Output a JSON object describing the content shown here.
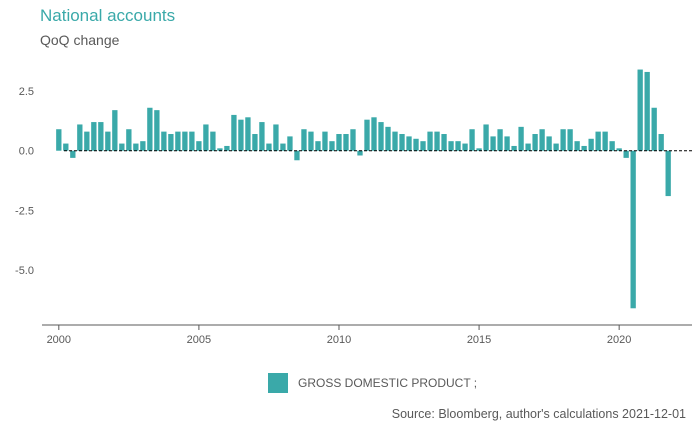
{
  "header": {
    "title": "National accounts",
    "subtitle": "QoQ change"
  },
  "legend": {
    "label": "GROSS DOMESTIC PRODUCT ;",
    "color": "#3aa9a9"
  },
  "footer": {
    "source": "Source: Bloomberg, author's calculations 2021-12-01"
  },
  "chart_data": {
    "type": "bar",
    "title": "National accounts",
    "subtitle": "QoQ change",
    "xlabel": "",
    "ylabel": "",
    "x_start": 2000,
    "x_step_per_bar": 0.25,
    "xlim": [
      1999.4,
      2022.6
    ],
    "ylim": [
      -7.3,
      3.8
    ],
    "yticks": [
      2.5,
      0.0,
      -2.5,
      -5.0
    ],
    "ytick_labels": [
      "2.5",
      "0.0",
      "-2.5",
      "-5.0"
    ],
    "xticks": [
      2000,
      2005,
      2010,
      2015,
      2020
    ],
    "xtick_labels": [
      "2000",
      "2005",
      "2010",
      "2015",
      "2020"
    ],
    "zero_line": "dashed",
    "grid": false,
    "series": [
      {
        "name": "GROSS DOMESTIC PRODUCT ;",
        "color": "#3aa9a9",
        "values": [
          0.9,
          0.3,
          -0.3,
          1.1,
          0.8,
          1.2,
          1.2,
          0.8,
          1.7,
          0.3,
          0.9,
          0.3,
          0.4,
          1.8,
          1.7,
          0.8,
          0.7,
          0.8,
          0.8,
          0.8,
          0.4,
          1.1,
          0.8,
          0.1,
          0.2,
          1.5,
          1.3,
          1.4,
          0.7,
          1.2,
          0.3,
          1.1,
          0.3,
          0.6,
          -0.4,
          0.9,
          0.8,
          0.4,
          0.8,
          0.4,
          0.7,
          0.7,
          0.9,
          -0.2,
          1.3,
          1.4,
          1.2,
          1.0,
          0.8,
          0.7,
          0.6,
          0.5,
          0.4,
          0.8,
          0.8,
          0.7,
          0.4,
          0.4,
          0.3,
          0.9,
          0.1,
          1.1,
          0.6,
          0.9,
          0.6,
          0.2,
          1.0,
          0.3,
          0.7,
          0.9,
          0.6,
          0.3,
          0.9,
          0.9,
          0.4,
          0.2,
          0.5,
          0.8,
          0.8,
          0.4,
          0.1,
          -0.3,
          -6.6,
          3.4,
          3.3,
          1.8,
          0.7,
          -1.9
        ]
      }
    ]
  }
}
